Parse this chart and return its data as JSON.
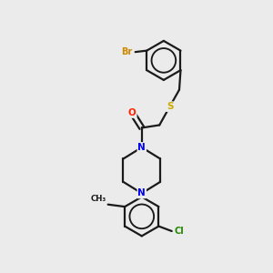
{
  "background_color": "#ebebeb",
  "bond_color": "#1a1a1a",
  "atom_colors": {
    "Br": "#cc8800",
    "S": "#ccaa00",
    "O": "#ff2200",
    "N": "#0000ee",
    "Cl": "#228800",
    "C": "#1a1a1a"
  },
  "bond_width": 1.6,
  "figsize": [
    3.0,
    3.0
  ],
  "dpi": 100
}
